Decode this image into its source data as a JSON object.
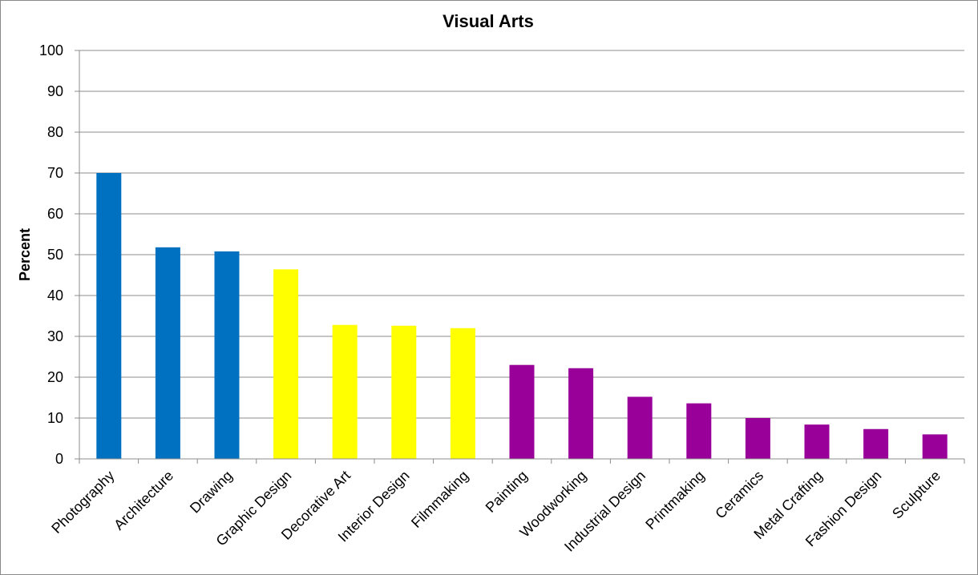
{
  "chart_data": {
    "type": "bar",
    "title": "Visual Arts",
    "xlabel": "",
    "ylabel": "Percent",
    "ylim": [
      0,
      100
    ],
    "yticks": [
      0,
      10,
      20,
      30,
      40,
      50,
      60,
      70,
      80,
      90,
      100
    ],
    "grid": true,
    "legend": "none",
    "categories": [
      "Photography",
      "Architecture",
      "Drawing",
      "Graphic Design",
      "Decorative Art",
      "Interior Design",
      "Filmmaking",
      "Painting",
      "Woodworking",
      "Industrial Design",
      "Printmaking",
      "Ceramics",
      "Metal Crafting",
      "Fashion Design",
      "Sculpture"
    ],
    "values": [
      70,
      51.8,
      50.8,
      46.4,
      32.8,
      32.6,
      32,
      23,
      22.2,
      15.2,
      13.6,
      10,
      8.4,
      7.3,
      6
    ],
    "bar_colors": [
      "#0070c0",
      "#0070c0",
      "#0070c0",
      "#ffff00",
      "#ffff00",
      "#ffff00",
      "#ffff00",
      "#990099",
      "#990099",
      "#990099",
      "#990099",
      "#990099",
      "#990099",
      "#990099",
      "#990099"
    ],
    "colors": {
      "grid": "#8c8c8c",
      "axis": "#8c8c8c",
      "background": "#ffffff"
    }
  }
}
